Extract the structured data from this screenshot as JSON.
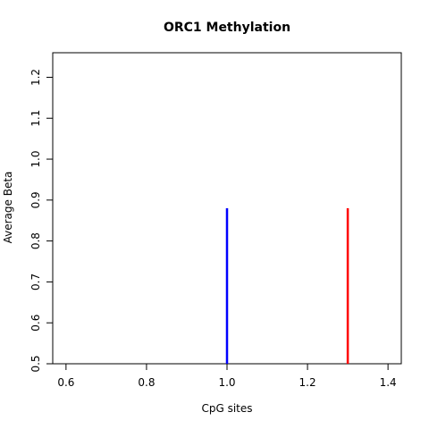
{
  "chart_data": {
    "type": "line",
    "title": "ORC1 Methylation",
    "xlabel": "CpG sites",
    "ylabel": "Average Beta",
    "xlim": [
      0.567,
      1.433
    ],
    "ylim": [
      0.5,
      1.26
    ],
    "x_ticks": [
      0.6,
      0.8,
      1.0,
      1.2,
      1.4
    ],
    "x_tick_labels": [
      "0.6",
      "0.8",
      "1.0",
      "1.2",
      "1.4"
    ],
    "y_ticks": [
      0.5,
      0.6,
      0.7,
      0.8,
      0.9,
      1.0,
      1.1,
      1.2
    ],
    "y_tick_labels": [
      "0.5",
      "0.6",
      "0.7",
      "0.8",
      "0.9",
      "1.0",
      "1.1",
      "1.2"
    ],
    "grid": false,
    "series": [
      {
        "x": [
          1.0,
          1.0
        ],
        "y": [
          0.5,
          0.88
        ],
        "color": "#0000ff"
      },
      {
        "x": [
          1.3,
          1.3
        ],
        "y": [
          0.5,
          0.88
        ],
        "color": "#ff0000"
      }
    ]
  }
}
